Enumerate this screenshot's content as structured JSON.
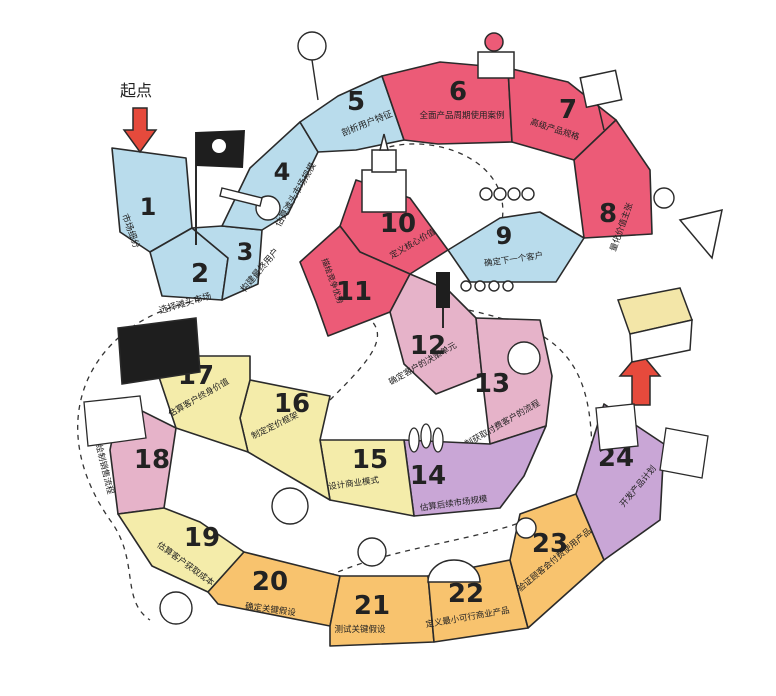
{
  "start": {
    "label": "起点"
  },
  "colors": {
    "blue": "#b9dcec",
    "red": "#ec5b77",
    "pink": "#e6b3c9",
    "purple": "#c9a6d6",
    "yellow": "#f4ecaa",
    "orange": "#f8c36e",
    "outline": "#2a2a2a",
    "arrow": "#e64a3c"
  },
  "cells": [
    {
      "num": "1",
      "label": "市场细分",
      "color": "blue"
    },
    {
      "num": "2",
      "label": "选择滩头市场",
      "color": "blue"
    },
    {
      "num": "3",
      "label": "构建最终用户",
      "color": "blue"
    },
    {
      "num": "4",
      "label": "估算滩头市场规模",
      "color": "blue"
    },
    {
      "num": "5",
      "label": "剖析用户特征",
      "color": "blue"
    },
    {
      "num": "6",
      "label": "全面产品周期使用案例",
      "color": "red"
    },
    {
      "num": "7",
      "label": "高级产品规格",
      "color": "red"
    },
    {
      "num": "8",
      "label": "量化价值主张",
      "color": "red"
    },
    {
      "num": "9",
      "label": "确定下一个客户",
      "color": "blue"
    },
    {
      "num": "10",
      "label": "定义核心价值",
      "color": "red"
    },
    {
      "num": "11",
      "label": "描绘竞争优势",
      "color": "red"
    },
    {
      "num": "12",
      "label": "确定客户的决策单元",
      "color": "pink"
    },
    {
      "num": "13",
      "label": "绘制获取付费客户的流程",
      "color": "pink"
    },
    {
      "num": "14",
      "label": "估算后续市场规模",
      "color": "purple"
    },
    {
      "num": "15",
      "label": "设计商业模式",
      "color": "yellow"
    },
    {
      "num": "16",
      "label": "制定定价框架",
      "color": "yellow"
    },
    {
      "num": "17",
      "label": "估算客户终身价值",
      "color": "yellow"
    },
    {
      "num": "18",
      "label": "绘制销售流程",
      "color": "pink"
    },
    {
      "num": "19",
      "label": "估算客户获取成本",
      "color": "yellow"
    },
    {
      "num": "20",
      "label": "确定关键假设",
      "color": "orange"
    },
    {
      "num": "21",
      "label": "测试关键假设",
      "color": "orange"
    },
    {
      "num": "22",
      "label": "定义最小可行商业产品",
      "color": "orange"
    },
    {
      "num": "23",
      "label": "验证顾客会付费使用产品",
      "color": "orange"
    },
    {
      "num": "24",
      "label": "开发产品计划",
      "color": "purple"
    }
  ]
}
